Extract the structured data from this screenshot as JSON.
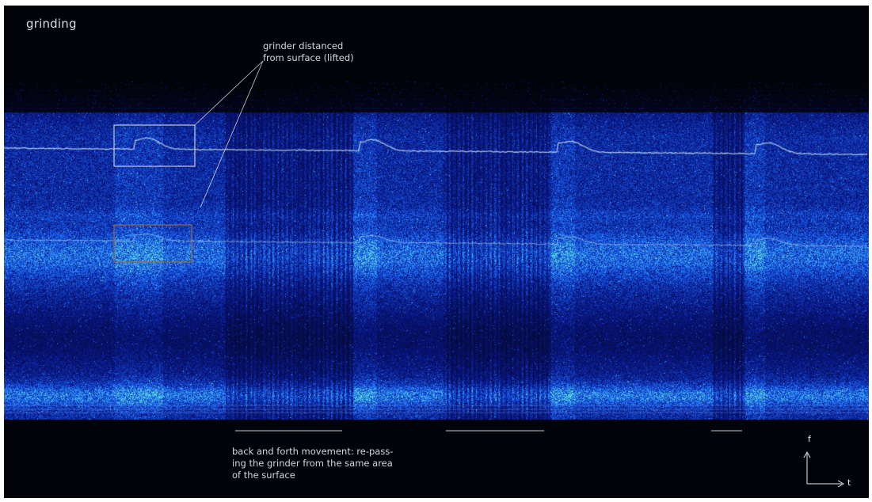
{
  "title": "grinding",
  "annotations": {
    "lifted": "grinder distanced from surface (lifted)",
    "movement": "back and forth movement: re-passing the grinder from the same area of the surface",
    "movement_lines": [
      "back and forth movement: re-pass-",
      "ing the grinder from the same area",
      "of the surface"
    ],
    "lifted_lines": [
      "grinder distanced",
      "from surface (lifted)"
    ]
  },
  "axes": {
    "y_label": "f",
    "x_label": "t"
  },
  "colors": {
    "background": "#020306",
    "low": "#0a1a8c",
    "mid": "#1f6bff",
    "high": "#5fe0c8",
    "trace": "#d8f2ff",
    "annotation": "#d3d7de",
    "box_white": "#c9ccd2",
    "box_orange": "#9b6a42"
  },
  "chart_data": {
    "type": "heatmap",
    "title": "grinding",
    "xlabel": "t",
    "ylabel": "f",
    "colormap": "black-blue-cyan",
    "grid": false,
    "legend": "none",
    "lifted_events_count": 4,
    "highlight_boxes": [
      "white: upper harmonic bump",
      "orange: lower harmonic bump"
    ],
    "underlined_regions_count": 3
  }
}
